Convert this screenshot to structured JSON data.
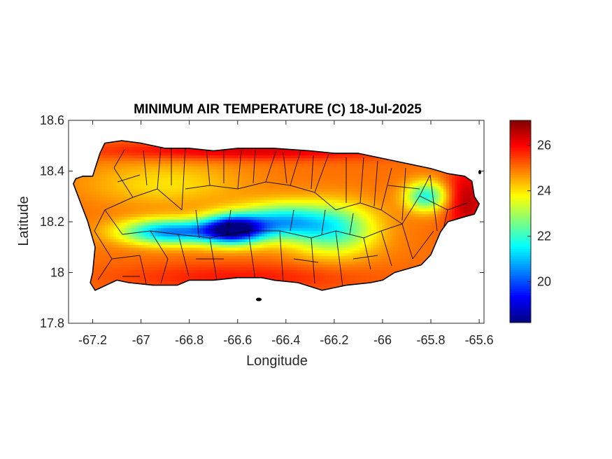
{
  "chart_data": {
    "type": "heatmap",
    "title": "MINIMUM AIR TEMPERATURE (C) 18-Jul-2025",
    "xlabel": "Longitude",
    "ylabel": "Latitude",
    "xlim": [
      -67.3,
      -65.58
    ],
    "ylim": [
      17.8,
      18.6
    ],
    "xticks": [
      -67.2,
      -67,
      -66.8,
      -66.6,
      -66.4,
      -66.2,
      -66,
      -65.8,
      -65.6
    ],
    "xtick_labels": [
      "-67.2",
      "-67",
      "-66.8",
      "-66.6",
      "-66.4",
      "-66.2",
      "-66",
      "-65.8",
      "-65.6"
    ],
    "yticks": [
      17.8,
      18,
      18.2,
      18.4,
      18.6
    ],
    "ytick_labels": [
      "17.8",
      "18",
      "18.2",
      "18.4",
      "18.6"
    ],
    "colormap": "jet",
    "clim": [
      18.2,
      27.1
    ],
    "colorbar": {
      "ticks": [
        20,
        22,
        24,
        26
      ],
      "tick_labels": [
        "20",
        "22",
        "24",
        "26"
      ]
    },
    "grid": false,
    "island_outline": [
      [
        -67.27,
        18.37
      ],
      [
        -67.24,
        18.38
      ],
      [
        -67.2,
        18.38
      ],
      [
        -67.17,
        18.47
      ],
      [
        -67.15,
        18.51
      ],
      [
        -67.08,
        18.52
      ],
      [
        -67.0,
        18.51
      ],
      [
        -66.9,
        18.49
      ],
      [
        -66.8,
        18.49
      ],
      [
        -66.7,
        18.48
      ],
      [
        -66.6,
        18.49
      ],
      [
        -66.45,
        18.49
      ],
      [
        -66.3,
        18.48
      ],
      [
        -66.2,
        18.47
      ],
      [
        -66.1,
        18.47
      ],
      [
        -66.0,
        18.45
      ],
      [
        -65.95,
        18.44
      ],
      [
        -65.9,
        18.43
      ],
      [
        -65.8,
        18.41
      ],
      [
        -65.73,
        18.39
      ],
      [
        -65.66,
        18.38
      ],
      [
        -65.63,
        18.36
      ],
      [
        -65.62,
        18.3
      ],
      [
        -65.6,
        18.27
      ],
      [
        -65.62,
        18.23
      ],
      [
        -65.66,
        18.22
      ],
      [
        -65.73,
        18.2
      ],
      [
        -65.76,
        18.16
      ],
      [
        -65.8,
        18.07
      ],
      [
        -65.84,
        18.03
      ],
      [
        -65.95,
        18.0
      ],
      [
        -66.0,
        17.97
      ],
      [
        -66.05,
        17.96
      ],
      [
        -66.15,
        17.95
      ],
      [
        -66.25,
        17.93
      ],
      [
        -66.35,
        17.96
      ],
      [
        -66.45,
        17.97
      ],
      [
        -66.5,
        17.98
      ],
      [
        -66.6,
        17.98
      ],
      [
        -66.7,
        17.97
      ],
      [
        -66.8,
        17.97
      ],
      [
        -66.85,
        17.95
      ],
      [
        -66.95,
        17.95
      ],
      [
        -67.05,
        17.96
      ],
      [
        -67.1,
        17.97
      ],
      [
        -67.19,
        17.93
      ],
      [
        -67.21,
        17.96
      ],
      [
        -67.2,
        18.0
      ],
      [
        -67.19,
        18.1
      ],
      [
        -67.22,
        18.2
      ],
      [
        -67.26,
        18.3
      ],
      [
        -67.28,
        18.35
      ]
    ],
    "temperature_field": {
      "base": 25.0,
      "components": [
        {
          "lon": -66.62,
          "lat": 18.17,
          "sigma_lon": 0.09,
          "sigma_lat": 0.04,
          "delta": -6.5
        },
        {
          "lon": -66.88,
          "lat": 18.16,
          "sigma_lon": 0.14,
          "sigma_lat": 0.035,
          "delta": -4.5
        },
        {
          "lon": -66.42,
          "lat": 18.2,
          "sigma_lon": 0.12,
          "sigma_lat": 0.05,
          "delta": -3.5
        },
        {
          "lon": -66.2,
          "lat": 18.17,
          "sigma_lon": 0.12,
          "sigma_lat": 0.07,
          "delta": -3.0
        },
        {
          "lon": -65.82,
          "lat": 18.3,
          "sigma_lon": 0.06,
          "sigma_lat": 0.04,
          "delta": -3.2
        },
        {
          "lon": -66.9,
          "lat": 18.35,
          "sigma_lon": 0.22,
          "sigma_lat": 0.06,
          "delta": -1.0
        },
        {
          "lon": -66.55,
          "lat": 18.48,
          "sigma_lon": 0.45,
          "sigma_lat": 0.025,
          "delta": 1.3
        },
        {
          "lon": -66.6,
          "lat": 17.98,
          "sigma_lon": 0.35,
          "sigma_lat": 0.04,
          "delta": 0.8
        },
        {
          "lon": -65.65,
          "lat": 18.28,
          "sigma_lon": 0.06,
          "sigma_lat": 0.1,
          "delta": 1.6
        }
      ]
    }
  }
}
